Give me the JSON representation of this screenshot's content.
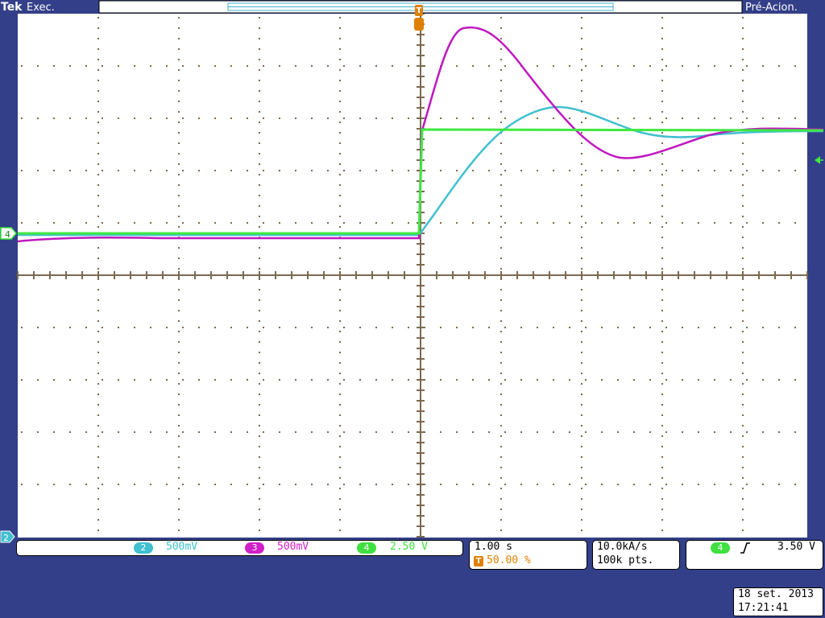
{
  "header": {
    "brand": "Tek",
    "run_state": "Exec.",
    "trigger_state": "Pré-Acion.",
    "trigger_marker": "T"
  },
  "channels": [
    {
      "id": "2",
      "scale": "500mV",
      "color": "#40c0d0"
    },
    {
      "id": "3",
      "scale": "500mV",
      "color": "#d020c8"
    },
    {
      "id": "4",
      "scale": "2.50 V",
      "color": "#40e040"
    }
  ],
  "markers": {
    "ch4_ground": "4",
    "ch2_ground": "2"
  },
  "timebase": {
    "scale": "1.00 s",
    "trigger_position": "50.00 %",
    "trigger_icon": "T"
  },
  "acquisition": {
    "sample_rate": "10.0kA/s",
    "record_length": "100k pts."
  },
  "trigger": {
    "source": "4",
    "slope_icon": "rising-edge-icon",
    "level": "3.50 V"
  },
  "datetime": {
    "date": "18 set.  2013",
    "time": "17:21:41"
  },
  "colors": {
    "background": "#333f88",
    "screen": "#ffffff",
    "graticule": "#7a6a50",
    "ch2": "#40c0d0",
    "ch3": "#c018c0",
    "ch4": "#40e840",
    "trigger": "#e08000"
  }
}
